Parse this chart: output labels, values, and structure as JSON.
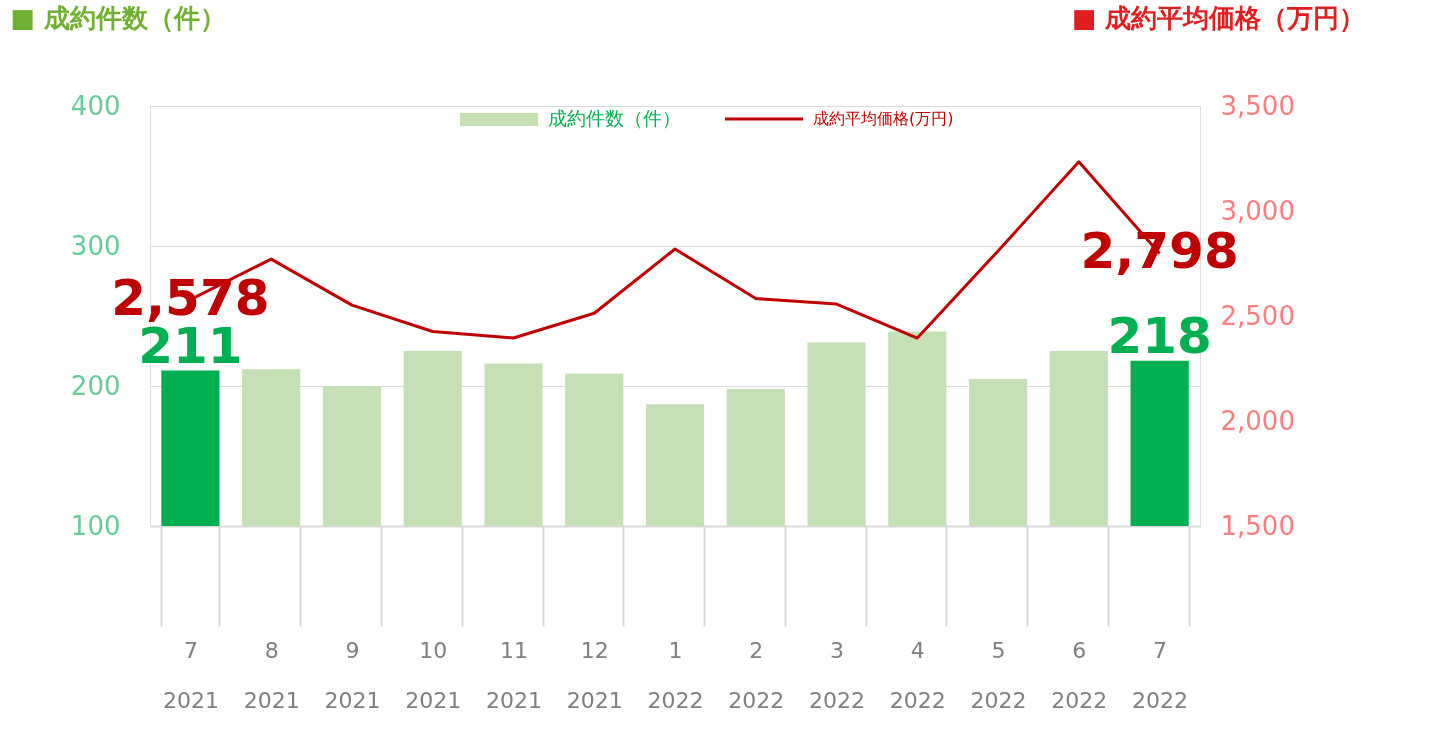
{
  "chart_data": {
    "type": "bar",
    "ylabel": "■ 成約件数（件）",
    "y2label": "■ 成約平均価格（万円）",
    "categories": [
      "7\n2021",
      "8\n2021",
      "9\n2021",
      "10\n2021",
      "11\n2021",
      "12\n2021",
      "1\n2022",
      "2\n2022",
      "3\n2022",
      "4\n2022",
      "5\n2022",
      "6\n2022",
      "7\n2022"
    ],
    "series": [
      {
        "name": "成約件数（件）",
        "color": "#c5e0b4",
        "colors": [
          "#00b050",
          "#c5e0b4",
          "#c5e0b4",
          "#c5e0b4",
          "#c5e0b4",
          "#c5e0b4",
          "#c5e0b4",
          "#c5e0b4",
          "#c5e0b4",
          "#c5e0b4",
          "#c5e0b4",
          "#c5e0b4",
          "#00b050"
        ],
        "values": [
          211,
          212,
          200,
          225,
          216,
          209,
          187,
          198,
          231,
          239,
          205,
          225,
          218
        ],
        "value_labels": [
          "211",
          null,
          null,
          null,
          null,
          null,
          null,
          null,
          null,
          null,
          null,
          null,
          "218"
        ]
      },
      {
        "name": "成約平均価格(万円)",
        "type": "line",
        "axis": "y2",
        "color": "#c00000",
        "values": [
          2578,
          2771,
          2552,
          2426,
          2395,
          2513,
          2819,
          2583,
          2557,
          2395,
          2810,
          3234,
          2798
        ],
        "value_labels": [
          "2,578",
          null,
          null,
          null,
          null,
          null,
          null,
          null,
          null,
          null,
          null,
          null,
          "2,798"
        ]
      }
    ],
    "ylim": [
      100,
      400
    ],
    "yticks": [
      100,
      200,
      300,
      400
    ],
    "y2lim": [
      1500,
      3500
    ],
    "y2ticks": [
      {
        "value": 1500,
        "label": "1,500"
      },
      {
        "value": 2000,
        "label": "2,000"
      },
      {
        "value": 2500,
        "label": "2,500"
      },
      {
        "value": 3000,
        "label": "3,000"
      },
      {
        "value": 3500,
        "label": "3,500"
      }
    ],
    "grid": "y",
    "legend": "top",
    "marker": "none",
    "line_style": "solid"
  }
}
